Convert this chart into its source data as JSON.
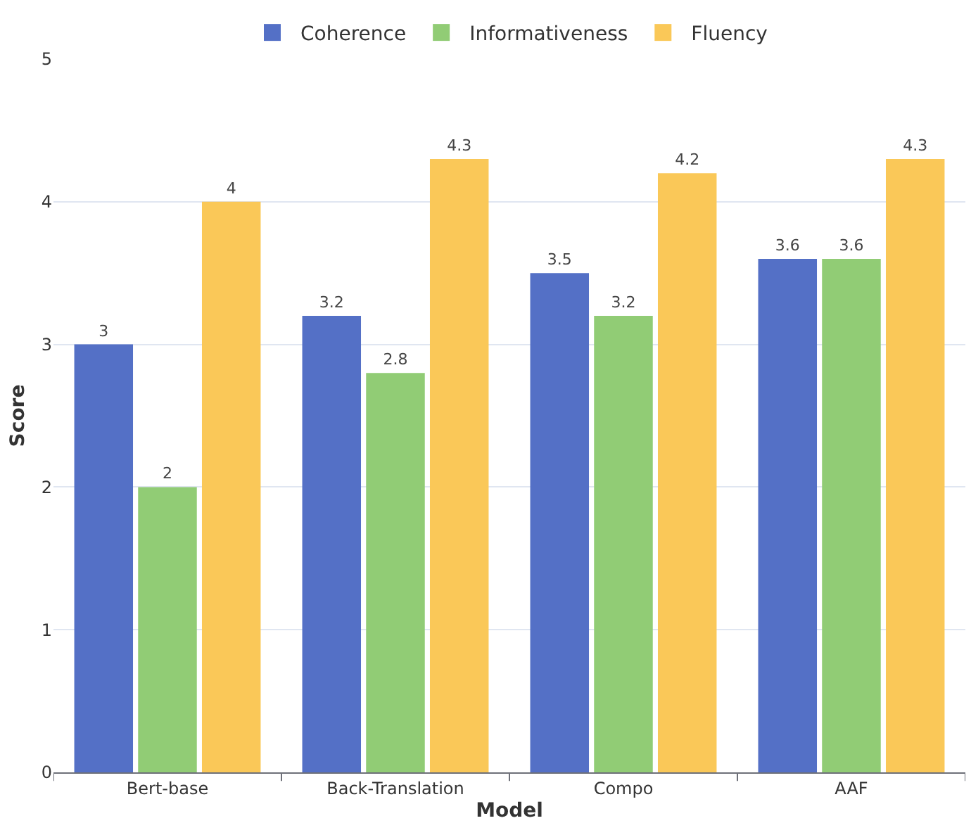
{
  "chart_data": {
    "type": "bar",
    "xlabel": "Model",
    "ylabel": "Score",
    "categories": [
      "Bert-base",
      "Back-Translation",
      "Compo",
      "AAF"
    ],
    "series": [
      {
        "name": "Coherence",
        "color": "#5470c6",
        "values": [
          3,
          3.2,
          3.5,
          3.6
        ]
      },
      {
        "name": "Informativeness",
        "color": "#91cc75",
        "values": [
          2,
          2.8,
          3.2,
          3.6
        ]
      },
      {
        "name": "Fluency",
        "color": "#fac858",
        "values": [
          4,
          4.3,
          4.2,
          4.3
        ]
      }
    ],
    "ylim": [
      0,
      5
    ],
    "yticks": [
      0,
      1,
      2,
      3,
      4,
      5
    ],
    "grid": "y",
    "legend": "top",
    "data_labels": true
  }
}
